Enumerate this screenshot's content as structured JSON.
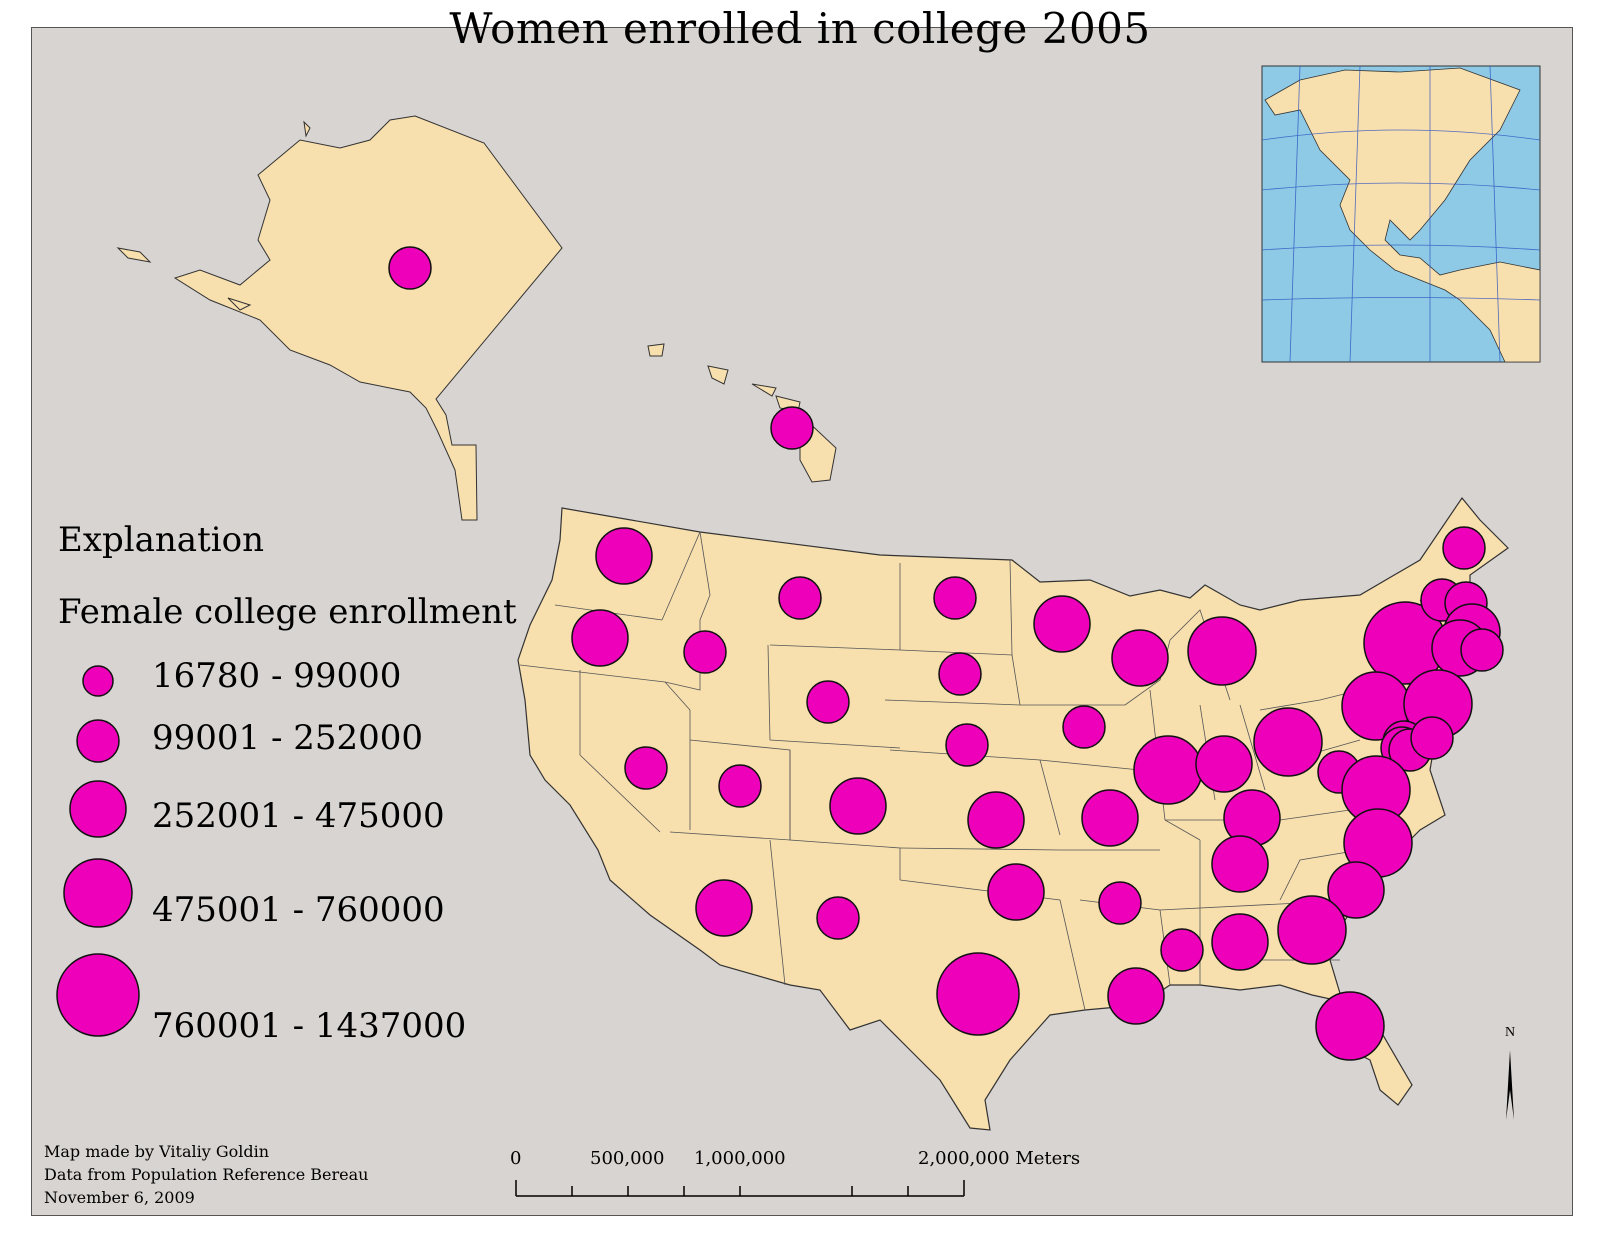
{
  "title": "Women enrolled in college 2005",
  "legend": {
    "heading": "Explanation",
    "subheading": "Female college enrollment",
    "classes": [
      "16780 - 99000",
      "99001 - 252000",
      "252001 - 475000",
      "475001 - 760000",
      "760001 - 1437000"
    ]
  },
  "credits": {
    "line1": "Map made by Vitaliy Goldin",
    "line2": "Data from Population Reference Bereau",
    "line3": "November 6, 2009"
  },
  "scale_bar": {
    "ticks": [
      "0",
      "500,000",
      "1,000,000",
      "2,000,000 Meters"
    ]
  },
  "north_arrow": {
    "label": "N"
  },
  "colors": {
    "background": "#d8d4d1",
    "land": "#f7dfae",
    "symbol": "#ee00bb",
    "ocean": "#8ecae6"
  },
  "symbol_classes": [
    {
      "class": 1,
      "range": "16780 - 99000"
    },
    {
      "class": 2,
      "range": "99001 - 252000"
    },
    {
      "class": 3,
      "range": "252001 - 475000"
    },
    {
      "class": 4,
      "range": "475001 - 760000"
    },
    {
      "class": 5,
      "range": "760001 - 1437000"
    }
  ]
}
